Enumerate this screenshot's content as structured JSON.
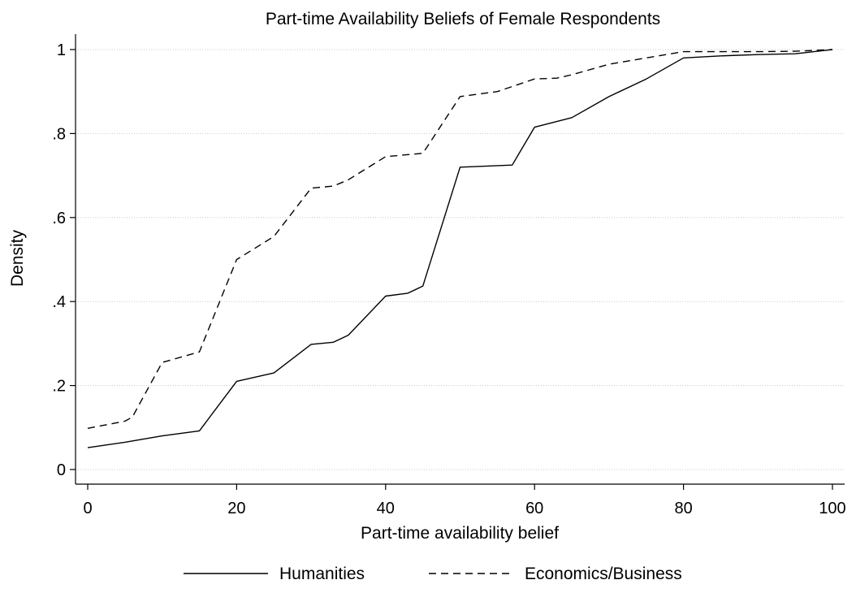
{
  "chart_data": {
    "type": "line",
    "title": "Part-time Availability Beliefs of Female Respondents",
    "xlabel": "Part-time availability belief",
    "ylabel": "Density",
    "xlim": [
      0,
      100
    ],
    "ylim": [
      0,
      1
    ],
    "x_ticks": [
      0,
      20,
      40,
      60,
      80,
      100
    ],
    "x_tick_labels": [
      "0",
      "20",
      "40",
      "60",
      "80",
      "100"
    ],
    "y_ticks": [
      0,
      0.2,
      0.4,
      0.6,
      0.8,
      1
    ],
    "y_tick_labels": [
      "0",
      ".2",
      ".4",
      ".6",
      ".8",
      "1"
    ],
    "grid": "horizontal",
    "legend_position": "bottom",
    "series": [
      {
        "name": "Humanities",
        "style": "solid",
        "color": "#000000",
        "points": [
          [
            0,
            0.052
          ],
          [
            5,
            0.065
          ],
          [
            10,
            0.08
          ],
          [
            15,
            0.092
          ],
          [
            20,
            0.21
          ],
          [
            25,
            0.23
          ],
          [
            30,
            0.298
          ],
          [
            33,
            0.303
          ],
          [
            35,
            0.32
          ],
          [
            40,
            0.413
          ],
          [
            43,
            0.42
          ],
          [
            45,
            0.437
          ],
          [
            50,
            0.72
          ],
          [
            57,
            0.725
          ],
          [
            60,
            0.815
          ],
          [
            65,
            0.838
          ],
          [
            70,
            0.888
          ],
          [
            75,
            0.93
          ],
          [
            80,
            0.98
          ],
          [
            85,
            0.985
          ],
          [
            90,
            0.988
          ],
          [
            95,
            0.99
          ],
          [
            100,
            1.0
          ]
        ]
      },
      {
        "name": "Economics/Business",
        "style": "dashed",
        "color": "#000000",
        "points": [
          [
            0,
            0.098
          ],
          [
            5,
            0.115
          ],
          [
            6,
            0.125
          ],
          [
            10,
            0.255
          ],
          [
            15,
            0.28
          ],
          [
            20,
            0.5
          ],
          [
            25,
            0.555
          ],
          [
            30,
            0.67
          ],
          [
            33,
            0.675
          ],
          [
            35,
            0.69
          ],
          [
            40,
            0.745
          ],
          [
            45,
            0.753
          ],
          [
            50,
            0.888
          ],
          [
            55,
            0.9
          ],
          [
            60,
            0.93
          ],
          [
            63,
            0.932
          ],
          [
            65,
            0.94
          ],
          [
            70,
            0.965
          ],
          [
            75,
            0.98
          ],
          [
            80,
            0.995
          ],
          [
            90,
            0.995
          ],
          [
            95,
            0.996
          ],
          [
            100,
            1.0
          ]
        ]
      }
    ]
  }
}
